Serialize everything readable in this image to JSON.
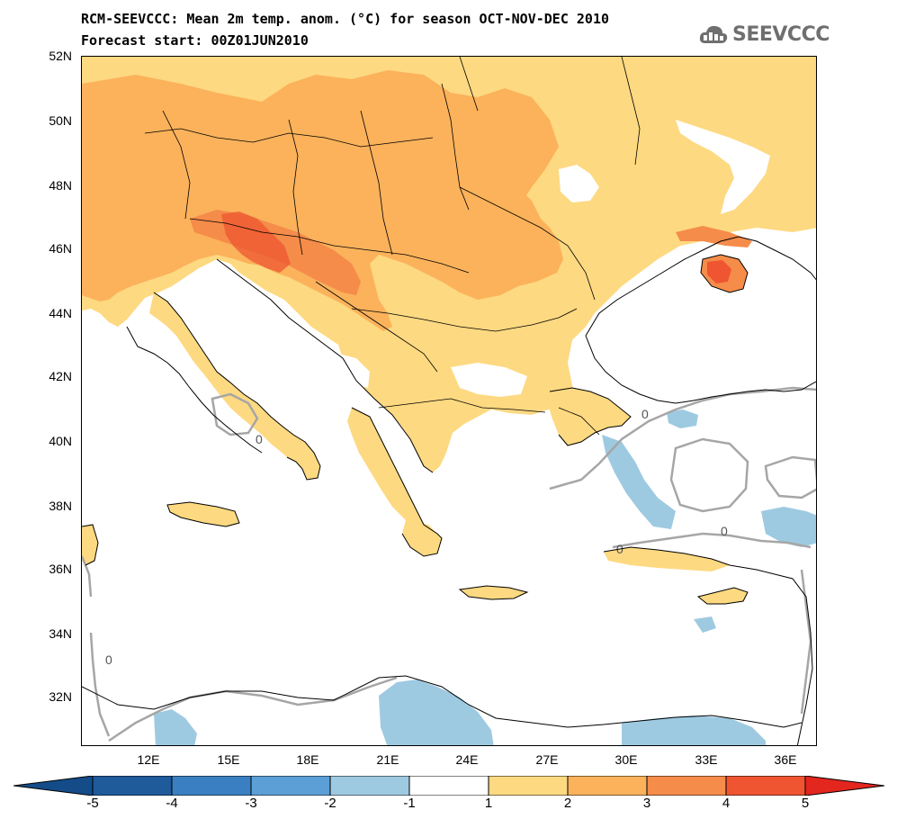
{
  "title": {
    "line1": "RCM-SEEVCCC: Mean 2m temp. anom. (°C) for season OCT-NOV-DEC 2010",
    "line2": "Forecast start: 00Z01JUN2010"
  },
  "logo": {
    "text": "SEEVCCC",
    "icon": "cloud-logo-icon"
  },
  "map": {
    "lat_labels": [
      "52N",
      "50N",
      "48N",
      "46N",
      "44N",
      "42N",
      "40N",
      "38N",
      "36N",
      "34N",
      "32N"
    ],
    "lon_labels": [
      "12E",
      "15E",
      "18E",
      "21E",
      "24E",
      "27E",
      "30E",
      "33E",
      "36E"
    ],
    "contour_label": "0",
    "colors": {
      "sea": "#ffffff",
      "anom_1_2": "#fdd981",
      "anom_2_3": "#fbb25b",
      "anom_3_4": "#f58c4a",
      "anom_4_5": "#ee5530",
      "anom_m1_m2": "#9ecae1",
      "contour": "#a6a6a6",
      "border": "#000000"
    }
  },
  "colorbar": {
    "labels": [
      "-5",
      "-4",
      "-3",
      "-2",
      "-1",
      "1",
      "2",
      "3",
      "4",
      "5"
    ],
    "colors": [
      "#1f5a9b",
      "#3a7fc2",
      "#5b9fd6",
      "#9ecae1",
      "#ffffff",
      "#fdd981",
      "#fbb25b",
      "#f58c4a",
      "#ee5530"
    ],
    "min_color": "#144c8a",
    "max_color": "#e3261e"
  }
}
